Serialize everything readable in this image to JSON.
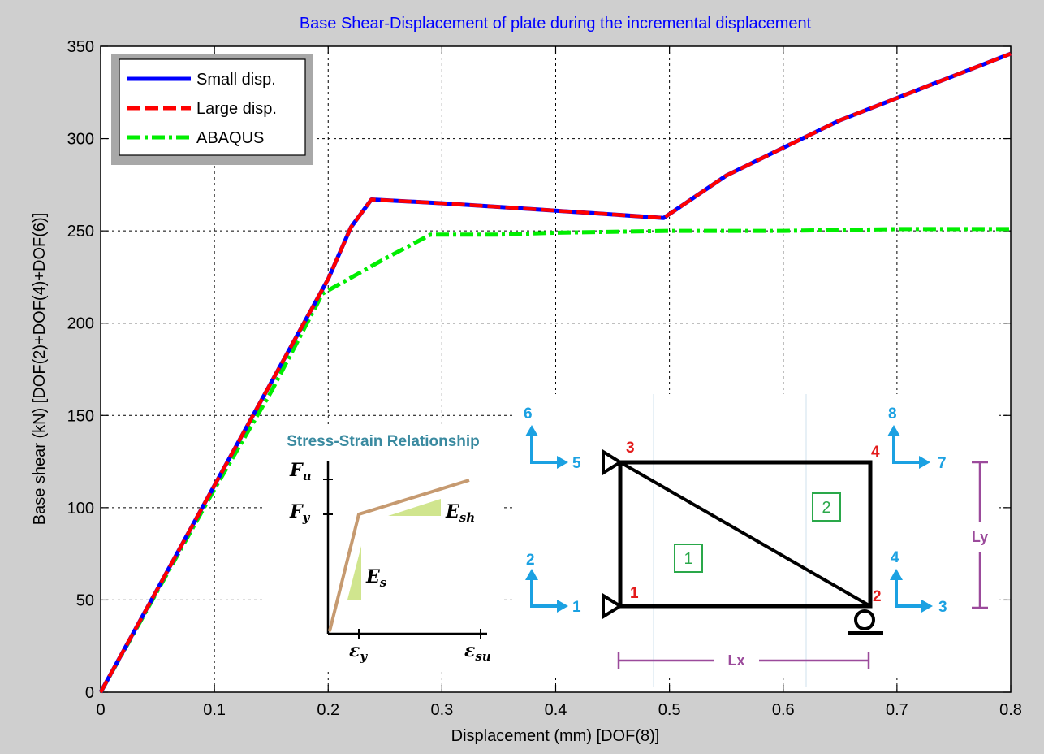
{
  "chart_data": {
    "type": "line",
    "title": "Base Shear-Displacement of plate during the incremental displacement",
    "xlabel": "Displacement (mm) [DOF(8)]",
    "ylabel": "Base shear (kN) [DOF(2)+DOF(4)+DOF(6)]",
    "xlim": [
      0,
      0.8
    ],
    "ylim": [
      0,
      350
    ],
    "xticks": [
      0,
      0.1,
      0.2,
      0.3,
      0.4,
      0.5,
      0.6,
      0.7,
      0.8
    ],
    "xtick_labels": [
      "0",
      "0.1",
      "0.2",
      "0.3",
      "0.4",
      "0.5",
      "0.6",
      "0.7",
      "0.8"
    ],
    "yticks": [
      0,
      50,
      100,
      150,
      200,
      250,
      300,
      350
    ],
    "ytick_labels": [
      "0",
      "50",
      "100",
      "150",
      "200",
      "250",
      "300",
      "350"
    ],
    "grid": true,
    "legend_position": "top-left",
    "series": [
      {
        "name": "Small disp.",
        "color": "#0000ff",
        "style": "solid",
        "x": [
          0,
          0.05,
          0.1,
          0.15,
          0.2,
          0.22,
          0.238,
          0.3,
          0.4,
          0.495,
          0.55,
          0.6,
          0.65,
          0.7,
          0.75,
          0.8
        ],
        "y": [
          0,
          56,
          112,
          168,
          224,
          252,
          267,
          265,
          261,
          257,
          280,
          295,
          310,
          322,
          334,
          346
        ]
      },
      {
        "name": "Large disp.",
        "color": "#ff0000",
        "style": "dashed",
        "x": [
          0,
          0.05,
          0.1,
          0.15,
          0.2,
          0.22,
          0.238,
          0.3,
          0.4,
          0.495,
          0.55,
          0.6,
          0.65,
          0.7,
          0.75,
          0.8
        ],
        "y": [
          0,
          56,
          112,
          168,
          224,
          252,
          267,
          265,
          261,
          257,
          280,
          295,
          310,
          322,
          334,
          346
        ]
      },
      {
        "name": "ABAQUS",
        "color": "#00ee00",
        "style": "dashdot",
        "x": [
          0,
          0.05,
          0.1,
          0.15,
          0.195,
          0.25,
          0.29,
          0.35,
          0.4,
          0.5,
          0.6,
          0.7,
          0.8
        ],
        "y": [
          0,
          55,
          110,
          163,
          216,
          235,
          248,
          248,
          249,
          250,
          250,
          251,
          251
        ]
      }
    ]
  },
  "inset": {
    "title": "Stress-Strain Relationship",
    "fu_label": "F",
    "fu_sub": "u",
    "fy_label": "F",
    "fy_sub": "y",
    "es_label": "E",
    "es_sub": "s",
    "esh_label": "E",
    "esh_sub": "sh",
    "ey_label": "ε",
    "ey_sub": "y",
    "esu_label": "ε",
    "esu_sub": "su",
    "colors": {
      "title": "#3a8aa0",
      "curve": "#c69a70",
      "triangle": "#c8e07a"
    }
  },
  "schematic": {
    "nodes": [
      "1",
      "2",
      "3",
      "4"
    ],
    "elements": [
      "1",
      "2"
    ],
    "dofs": [
      "1",
      "2",
      "3",
      "4",
      "5",
      "6",
      "7",
      "8"
    ],
    "lx_label": "Lx",
    "ly_label": "Ly",
    "colors": {
      "node": "#e31b1b",
      "dof": "#1ba1e2",
      "element": "#2aa84a",
      "dimension": "#9b4a9b"
    }
  }
}
